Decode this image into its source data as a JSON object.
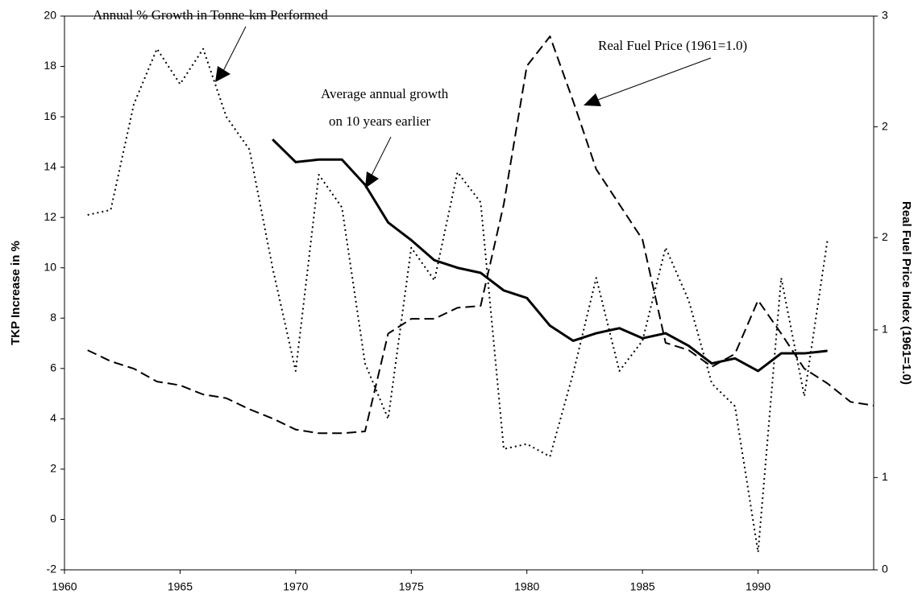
{
  "chart_data": {
    "type": "line",
    "y_label": "TKP Increase in %",
    "y2_label": "Real Fuel Price Index (1961=1.0)",
    "annotations": [
      "Annual % Growth in Tonne-km Performed",
      "Average annual growth",
      "on 10 years earlier",
      "Real Fuel Price (1961=1.0)"
    ],
    "xlim": [
      1960,
      1995
    ],
    "xticks": [
      1960,
      1965,
      1970,
      1975,
      1980,
      1985,
      1990
    ],
    "ylim": [
      -2,
      20
    ],
    "yticks": [
      -2,
      0,
      2,
      4,
      6,
      8,
      10,
      12,
      14,
      16,
      18,
      20
    ],
    "y2lim": [
      0,
      3
    ],
    "y2ticks": [
      0,
      {
        "value": 0.5,
        "label": "1"
      },
      {
        "value": 1.3,
        "label": "1"
      },
      {
        "value": 1.8,
        "label": "2"
      },
      {
        "value": 2.4,
        "label": "2"
      },
      3
    ],
    "series": [
      {
        "style": "dotted",
        "color": "#000000",
        "x": [
          1961,
          1962,
          1963,
          1964,
          1965,
          1966,
          1967,
          1968,
          1969,
          1970,
          1971,
          1972,
          1973,
          1974,
          1975,
          1976,
          1977,
          1978,
          1979,
          1980,
          1981,
          1982,
          1983,
          1984,
          1985,
          1986,
          1987,
          1988,
          1989,
          1990,
          1991,
          1992,
          1993
        ],
        "values": [
          12.1,
          12.3,
          16.5,
          18.7,
          17.3,
          18.7,
          16.0,
          14.7,
          10.0,
          5.9,
          13.7,
          12.4,
          6.2,
          4.0,
          10.8,
          9.5,
          13.8,
          12.6,
          2.8,
          3.0,
          2.5,
          5.8,
          9.6,
          5.9,
          7.1,
          10.8,
          8.7,
          5.4,
          4.5,
          -1.3,
          9.6,
          4.9,
          11.1
        ]
      },
      {
        "style": "solid",
        "color": "#000000",
        "x": [
          1969,
          1970,
          1971,
          1972,
          1973,
          1974,
          1975,
          1976,
          1977,
          1978,
          1979,
          1980,
          1981,
          1982,
          1983,
          1984,
          1985,
          1986,
          1987,
          1988,
          1989,
          1990,
          1991,
          1992,
          1993
        ],
        "values": [
          15.1,
          14.2,
          14.3,
          14.3,
          13.3,
          11.8,
          11.1,
          10.3,
          10.0,
          9.8,
          9.1,
          8.8,
          7.7,
          7.1,
          7.4,
          7.6,
          7.2,
          7.4,
          6.9,
          6.2,
          6.4,
          5.9,
          6.6,
          6.6,
          6.7
        ]
      },
      {
        "style": "dashed",
        "color": "#000000",
        "axis": "y2",
        "x": [
          1961,
          1962,
          1963,
          1964,
          1965,
          1966,
          1967,
          1968,
          1969,
          1970,
          1971,
          1972,
          1973,
          1974,
          1975,
          1976,
          1977,
          1978,
          1979,
          1980,
          1981,
          1982,
          1983,
          1984,
          1985,
          1986,
          1987,
          1988,
          1989,
          1990,
          1991,
          1992,
          1993,
          1994,
          1995
        ],
        "values": [
          1.19,
          1.13,
          1.09,
          1.02,
          1.0,
          0.95,
          0.93,
          0.87,
          0.82,
          0.76,
          0.74,
          0.74,
          0.75,
          1.28,
          1.36,
          1.36,
          1.42,
          1.43,
          1.98,
          2.73,
          2.89,
          2.54,
          2.17,
          1.98,
          1.79,
          1.23,
          1.19,
          1.1,
          1.17,
          1.46,
          1.28,
          1.09,
          1.01,
          0.91,
          0.89
        ]
      }
    ]
  }
}
